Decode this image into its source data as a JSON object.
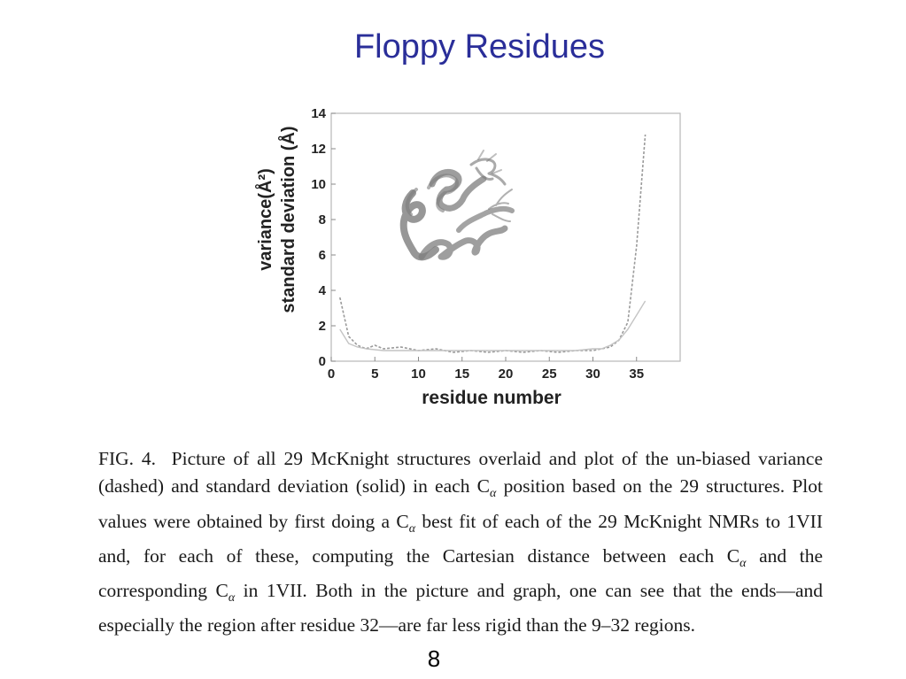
{
  "slide": {
    "title": "Floppy Residues",
    "page_number": "8"
  },
  "caption": {
    "segments": [
      "FIG. 4.  Picture of all 29 McKnight structures overlaid and plot of the un-biased variance (dashed) and standard deviation (solid) in each C",
      "α",
      " position based on the 29 structures. Plot values were obtained by first doing a C",
      "α",
      " best fit of each of the 29 McKnight NMRs to 1VII and, for each of these, computing the Cartesian distance between each C",
      "α",
      " and the corresponding C",
      "α",
      " in 1VII. Both in the picture and graph, one can see that the ends—and especially the region after residue 32—are far less rigid than the 9–32 regions."
    ]
  },
  "chart_data": {
    "type": "line",
    "xlabel": "residue number",
    "ylabel_lines": [
      "variance(Å²)",
      "standard deviation (Å)"
    ],
    "xlim": [
      0,
      40
    ],
    "ylim": [
      0,
      14
    ],
    "x_ticks": [
      0,
      5,
      10,
      15,
      20,
      25,
      30,
      35
    ],
    "y_ticks": [
      0,
      2,
      4,
      6,
      8,
      10,
      12,
      14
    ],
    "grid": false,
    "series": [
      {
        "style": "dashed",
        "color": "#9a9a9a",
        "x": [
          1,
          2,
          3,
          4,
          5,
          6,
          8,
          10,
          12,
          14,
          16,
          18,
          20,
          22,
          24,
          26,
          28,
          30,
          31,
          32,
          33,
          34,
          35,
          36
        ],
        "y": [
          3.6,
          1.4,
          0.9,
          0.7,
          0.9,
          0.7,
          0.8,
          0.6,
          0.7,
          0.5,
          0.6,
          0.5,
          0.6,
          0.5,
          0.6,
          0.5,
          0.6,
          0.6,
          0.7,
          0.8,
          1.2,
          2.2,
          6.5,
          12.8
        ]
      },
      {
        "style": "solid",
        "color": "#c4c4c4",
        "x": [
          1,
          2,
          3,
          4,
          6,
          8,
          10,
          12,
          14,
          16,
          18,
          20,
          22,
          24,
          26,
          28,
          30,
          31,
          32,
          33,
          34,
          35,
          36
        ],
        "y": [
          1.8,
          1.0,
          0.8,
          0.7,
          0.6,
          0.6,
          0.6,
          0.6,
          0.6,
          0.6,
          0.6,
          0.6,
          0.6,
          0.6,
          0.6,
          0.6,
          0.7,
          0.7,
          0.9,
          1.2,
          1.8,
          2.6,
          3.4
        ]
      }
    ]
  }
}
